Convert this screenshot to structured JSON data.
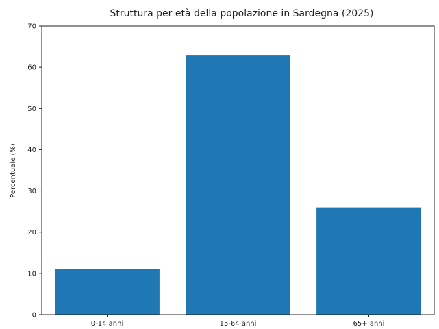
{
  "chart_data": {
    "type": "bar",
    "title": "Struttura per età della popolazione in Sardegna (2025)",
    "xlabel": "",
    "ylabel": "Percentuale (%)",
    "categories": [
      "0-14 anni",
      "15-64 anni",
      "65+ anni"
    ],
    "values": [
      11,
      63,
      26
    ],
    "ylim": [
      0,
      70
    ],
    "yticks": [
      0,
      10,
      20,
      30,
      40,
      50,
      60,
      70
    ],
    "grid": false,
    "legend": "none",
    "bar_color": "#1f77b4"
  }
}
